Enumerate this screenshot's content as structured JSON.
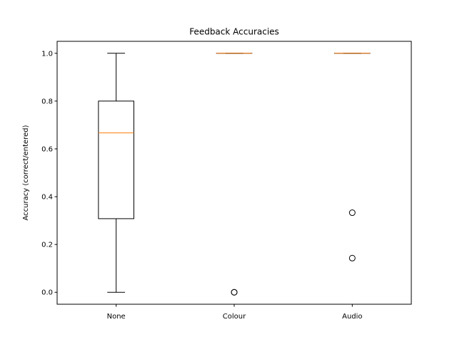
{
  "chart_data": {
    "type": "box",
    "title": "Feedback Accuracies",
    "xlabel": "",
    "ylabel": "Accuracy (correct/entered)",
    "ylim": [
      -0.05,
      1.05
    ],
    "yticks": [
      "0.0",
      "0.2",
      "0.4",
      "0.6",
      "0.8",
      "1.0"
    ],
    "grid": false,
    "categories": [
      "None",
      "Colour",
      "Audio"
    ],
    "boxes": [
      {
        "category": "None",
        "whisker_low": 0.0,
        "q1": 0.308,
        "median": 0.667,
        "q3": 0.8,
        "whisker_high": 1.0,
        "outliers": []
      },
      {
        "category": "Colour",
        "whisker_low": 1.0,
        "q1": 1.0,
        "median": 1.0,
        "q3": 1.0,
        "whisker_high": 1.0,
        "outliers": [
          0.0,
          0.0
        ]
      },
      {
        "category": "Audio",
        "whisker_low": 1.0,
        "q1": 1.0,
        "median": 1.0,
        "q3": 1.0,
        "whisker_high": 1.0,
        "outliers": [
          0.333,
          0.143
        ]
      }
    ],
    "colors": {
      "box": "#000000",
      "median": "#ff7f0e",
      "outlier": "#000000"
    }
  }
}
